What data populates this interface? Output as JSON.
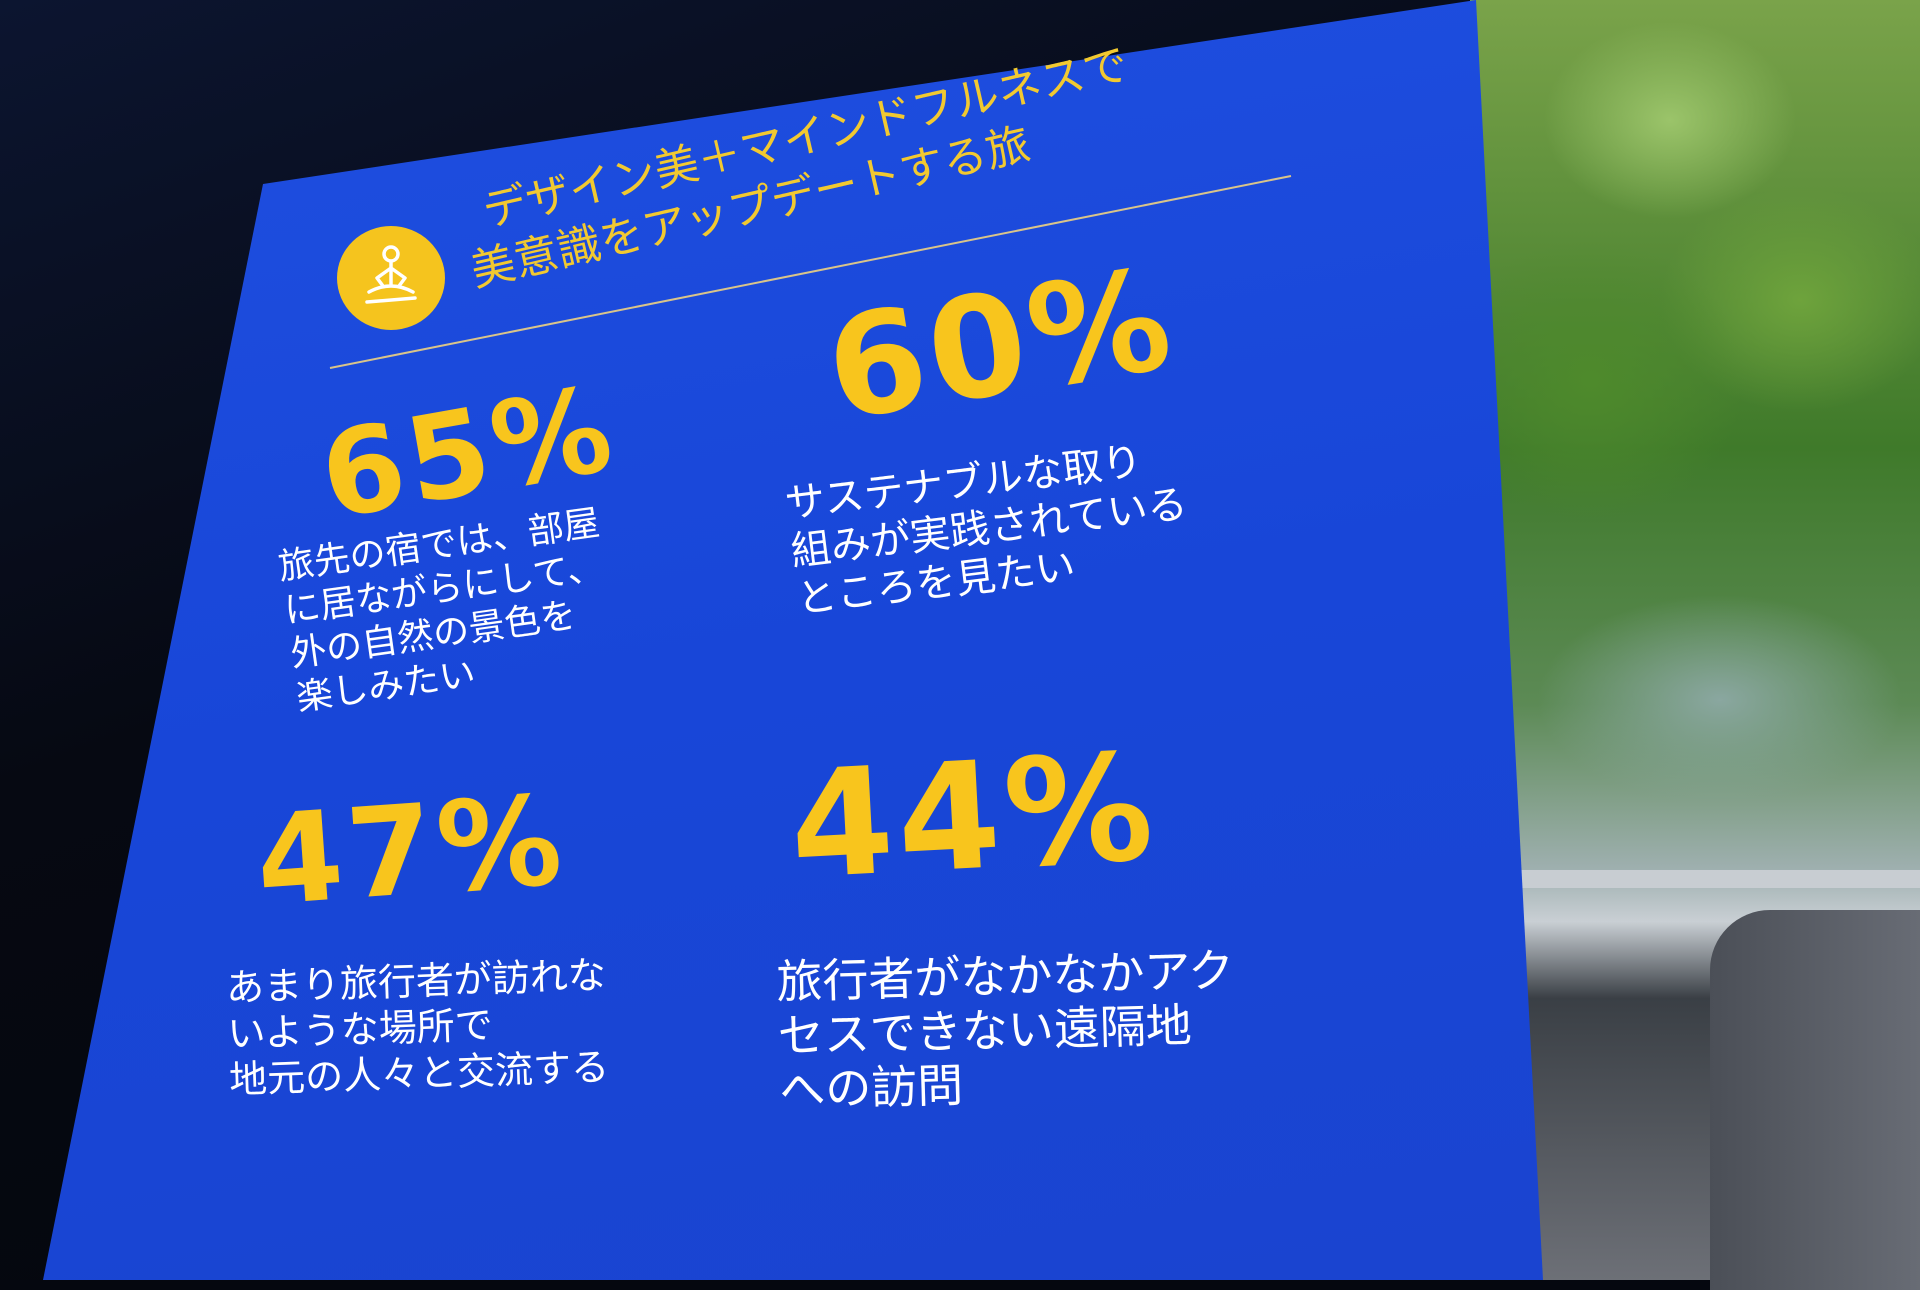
{
  "slide": {
    "title_line1": "デザイン美＋マインドフルネスで",
    "title_line2": "美意識をアップデートする旅",
    "icon": "meditation-icon",
    "colors": {
      "background": "#1f4fe0",
      "accent": "#f8c51d",
      "text": "#ffffff"
    },
    "stats": [
      {
        "value": "65%",
        "text": "旅先の宿では、部屋\nに居ながらにして、\n外の自然の景色を\n楽しみたい"
      },
      {
        "value": "60%",
        "text": "サステナブルな取り\n組みが実践されている\nところを見たい"
      },
      {
        "value": "47%",
        "text": "あまり旅行者が訪れな\nいような場所で\n地元の人々と交流する"
      },
      {
        "value": "44%",
        "text": "旅行者がなかなかアク\nセスできない遠隔地\nへの訪問"
      }
    ]
  }
}
